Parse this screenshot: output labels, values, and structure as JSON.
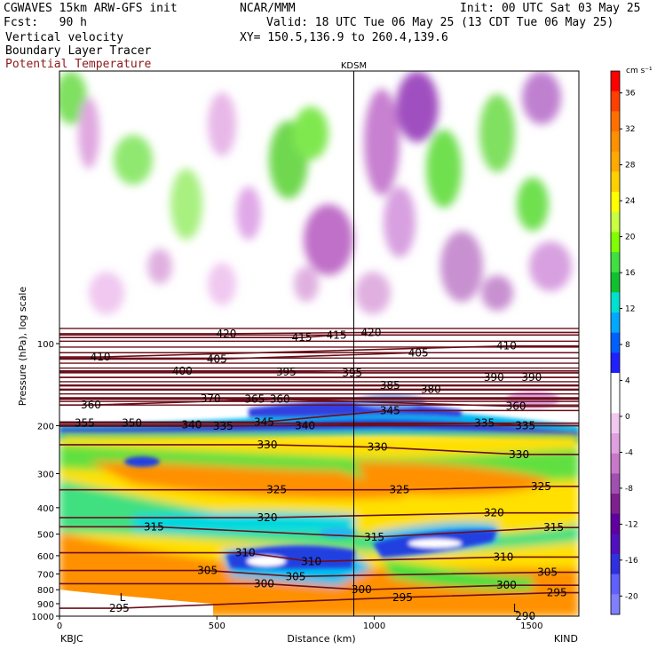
{
  "header": {
    "model": "CGWAVES 15km ARW-GFS init",
    "org": "NCAR/MMM",
    "init": "Init: 00 UTC Sat 03 May 25",
    "fcst": "Fcst:   90 h",
    "valid": "Valid: 18 UTC Tue 06 May 25 (13 CDT Tue 06 May 25)",
    "xy": "XY= 150.5,136.9 to 260.4,139.6",
    "field1": "Vertical velocity",
    "field2": "Boundary Layer Tracer",
    "field3": "Potential Temperature"
  },
  "colors": {
    "theta_contour": "#6b0f1a",
    "tracer": "#ffffff",
    "station_line": "#000000"
  },
  "chart_data": {
    "type": "heatmap",
    "title": "",
    "xlabel": "Distance (km)",
    "ylabel": "Pressure (hPa), log scale",
    "xlim": [
      0,
      1650
    ],
    "ylim": [
      1000,
      10
    ],
    "x_ticks": [
      "0",
      "500",
      "1000",
      "1500"
    ],
    "y_ticks": [
      "100",
      "200",
      "300",
      "400",
      "500",
      "600",
      "700",
      "800",
      "900",
      "1000"
    ],
    "station_marker": {
      "label": "KDSM",
      "x": 935
    },
    "end_labels": {
      "left": "KBJC",
      "right": "KIND"
    },
    "colorbar": {
      "unit": "cm s⁻¹",
      "labels": [
        "36",
        "32",
        "28",
        "24",
        "20",
        "16",
        "12",
        "8",
        "4",
        "0",
        "-4",
        "-8",
        "-12",
        "-16",
        "-20"
      ],
      "colors": [
        "#ff0000",
        "#ff4000",
        "#ff7000",
        "#ff9000",
        "#ffaa00",
        "#ffd000",
        "#ffff00",
        "#c8ff40",
        "#80ff00",
        "#40e040",
        "#10c030",
        "#00e0d0",
        "#00a8ff",
        "#0060ff",
        "#2020ff",
        "#ffffff",
        "#ffffff",
        "#f0c8f0",
        "#e0a0e0",
        "#c878c8",
        "#a050b0",
        "#802090",
        "#6000a0",
        "#5010c0",
        "#3030e0",
        "#6060ff",
        "#8080ff"
      ]
    },
    "theta_labels": [
      {
        "v": "420",
        "x": 530,
        "p": 92
      },
      {
        "v": "415",
        "x": 770,
        "p": 95
      },
      {
        "v": "415",
        "x": 880,
        "p": 93
      },
      {
        "v": "420",
        "x": 990,
        "p": 91
      },
      {
        "v": "410",
        "x": 130,
        "p": 112
      },
      {
        "v": "405",
        "x": 500,
        "p": 114
      },
      {
        "v": "405",
        "x": 1140,
        "p": 108
      },
      {
        "v": "410",
        "x": 1420,
        "p": 102
      },
      {
        "v": "400",
        "x": 390,
        "p": 126
      },
      {
        "v": "395",
        "x": 720,
        "p": 127
      },
      {
        "v": "395",
        "x": 930,
        "p": 128
      },
      {
        "v": "385",
        "x": 1050,
        "p": 142
      },
      {
        "v": "380",
        "x": 1180,
        "p": 147
      },
      {
        "v": "390",
        "x": 1380,
        "p": 133
      },
      {
        "v": "390",
        "x": 1500,
        "p": 133
      },
      {
        "v": "360",
        "x": 100,
        "p": 168
      },
      {
        "v": "370",
        "x": 480,
        "p": 159
      },
      {
        "v": "365",
        "x": 620,
        "p": 160
      },
      {
        "v": "360",
        "x": 700,
        "p": 160
      },
      {
        "v": "345",
        "x": 1050,
        "p": 176
      },
      {
        "v": "360",
        "x": 1450,
        "p": 170
      },
      {
        "v": "355",
        "x": 80,
        "p": 196
      },
      {
        "v": "350",
        "x": 230,
        "p": 196
      },
      {
        "v": "340",
        "x": 420,
        "p": 199
      },
      {
        "v": "335",
        "x": 520,
        "p": 201
      },
      {
        "v": "345",
        "x": 650,
        "p": 194
      },
      {
        "v": "340",
        "x": 780,
        "p": 200
      },
      {
        "v": "335",
        "x": 1350,
        "p": 196
      },
      {
        "v": "335",
        "x": 1480,
        "p": 200
      },
      {
        "v": "330",
        "x": 660,
        "p": 235
      },
      {
        "v": "330",
        "x": 1010,
        "p": 240
      },
      {
        "v": "330",
        "x": 1460,
        "p": 255
      },
      {
        "v": "325",
        "x": 690,
        "p": 344
      },
      {
        "v": "325",
        "x": 1080,
        "p": 344
      },
      {
        "v": "325",
        "x": 1530,
        "p": 334
      },
      {
        "v": "320",
        "x": 660,
        "p": 435
      },
      {
        "v": "320",
        "x": 1380,
        "p": 418
      },
      {
        "v": "315",
        "x": 300,
        "p": 470
      },
      {
        "v": "315",
        "x": 1000,
        "p": 513
      },
      {
        "v": "315",
        "x": 1570,
        "p": 473
      },
      {
        "v": "310",
        "x": 590,
        "p": 585
      },
      {
        "v": "310",
        "x": 800,
        "p": 630
      },
      {
        "v": "310",
        "x": 1410,
        "p": 607
      },
      {
        "v": "305",
        "x": 470,
        "p": 680
      },
      {
        "v": "305",
        "x": 750,
        "p": 715
      },
      {
        "v": "305",
        "x": 1550,
        "p": 690
      },
      {
        "v": "300",
        "x": 650,
        "p": 760
      },
      {
        "v": "300",
        "x": 960,
        "p": 800
      },
      {
        "v": "300",
        "x": 1420,
        "p": 770
      },
      {
        "v": "295",
        "x": 190,
        "p": 935
      },
      {
        "v": "295",
        "x": 1090,
        "p": 853
      },
      {
        "v": "295",
        "x": 1580,
        "p": 820
      }
    ],
    "lows": [
      {
        "v": "L",
        "x": 200,
        "p": 855
      },
      {
        "v": "L",
        "x": 1450,
        "p": 935
      }
    ],
    "corner_label": {
      "v": "290",
      "x": 1480,
      "p": 1000
    }
  }
}
